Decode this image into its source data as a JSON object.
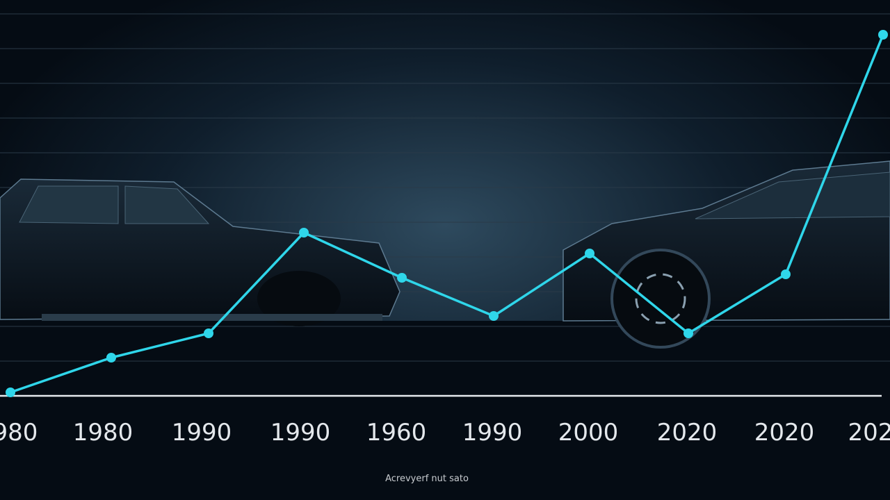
{
  "chart_data": {
    "type": "line",
    "categories": [
      "980",
      "1980",
      "1990",
      "1990",
      "1960",
      "1990",
      "2000",
      "2020",
      "2020",
      "202"
    ],
    "values": [
      0.1,
      1.1,
      1.8,
      4.7,
      3.4,
      2.3,
      4.1,
      1.8,
      3.5,
      10.4
    ],
    "color": "#2fd6ea",
    "ylim": [
      0,
      11
    ],
    "yticks": [
      1,
      2,
      3,
      4,
      5,
      6,
      7,
      8,
      9,
      10,
      11
    ],
    "grid": true,
    "caption": "Acrevyerf nut sato"
  }
}
